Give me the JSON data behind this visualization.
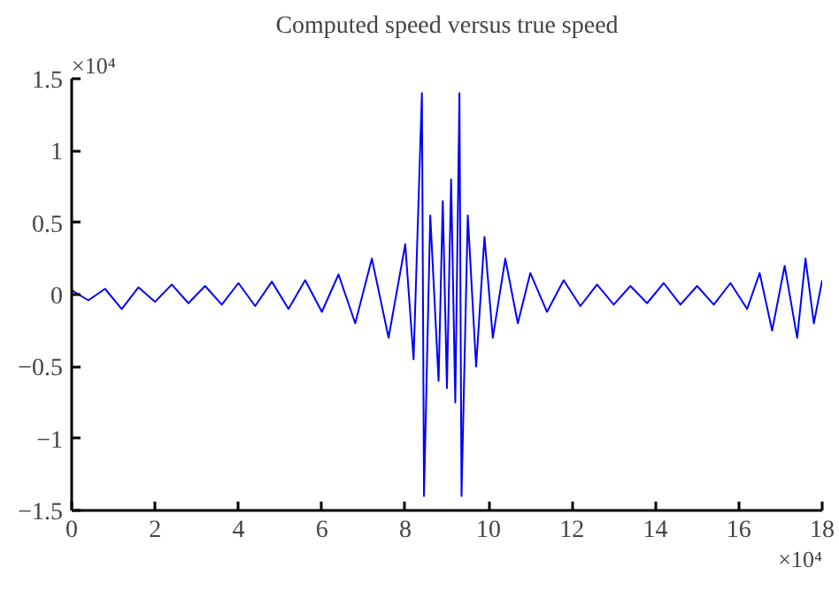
{
  "chart_data": {
    "type": "line",
    "title": "Computed speed versus true speed",
    "annotations": [
      "×10⁴",
      "×10⁴"
    ],
    "series": [
      {
        "color": "#0000ff",
        "x": [
          0,
          0.4,
          0.8,
          1.2,
          1.6,
          2,
          2.4,
          2.8,
          3.2,
          3.6,
          4,
          4.4,
          4.8,
          5.2,
          5.6,
          6,
          6.4,
          6.8,
          7.2,
          7.6,
          8,
          8.2,
          8.4,
          8.45,
          8.6,
          8.8,
          8.9,
          9.0,
          9.1,
          9.2,
          9.3,
          9.35,
          9.5,
          9.7,
          9.9,
          10.1,
          10.4,
          10.7,
          11,
          11.4,
          11.8,
          12.2,
          12.6,
          13,
          13.4,
          13.8,
          14.2,
          14.6,
          15,
          15.4,
          15.8,
          16.2,
          16.5,
          16.8,
          17.1,
          17.4,
          17.6,
          17.8,
          18
        ],
        "values": [
          0.03,
          -0.04,
          0.04,
          -0.1,
          0.05,
          -0.05,
          0.07,
          -0.06,
          0.06,
          -0.07,
          0.08,
          -0.08,
          0.09,
          -0.1,
          0.1,
          -0.12,
          0.14,
          -0.2,
          0.25,
          -0.3,
          0.35,
          -0.45,
          1.4,
          -1.4,
          0.55,
          -0.6,
          0.65,
          -0.65,
          0.8,
          -0.75,
          1.4,
          -1.4,
          0.55,
          -0.5,
          0.4,
          -0.3,
          0.25,
          -0.2,
          0.15,
          -0.12,
          0.1,
          -0.08,
          0.07,
          -0.07,
          0.06,
          -0.06,
          0.08,
          -0.07,
          0.06,
          -0.07,
          0.08,
          -0.1,
          0.15,
          -0.25,
          0.2,
          -0.3,
          0.25,
          -0.2,
          0.1
        ]
      }
    ],
    "xlim": [
      0,
      18
    ],
    "xticks": [
      0,
      2,
      4,
      6,
      8,
      10,
      12,
      14,
      16,
      18
    ],
    "ylim": [
      -1.5,
      1.5
    ],
    "yticks": [
      -1.5,
      -1,
      -0.5,
      0,
      0.5,
      1,
      1.5
    ],
    "grid": false
  }
}
